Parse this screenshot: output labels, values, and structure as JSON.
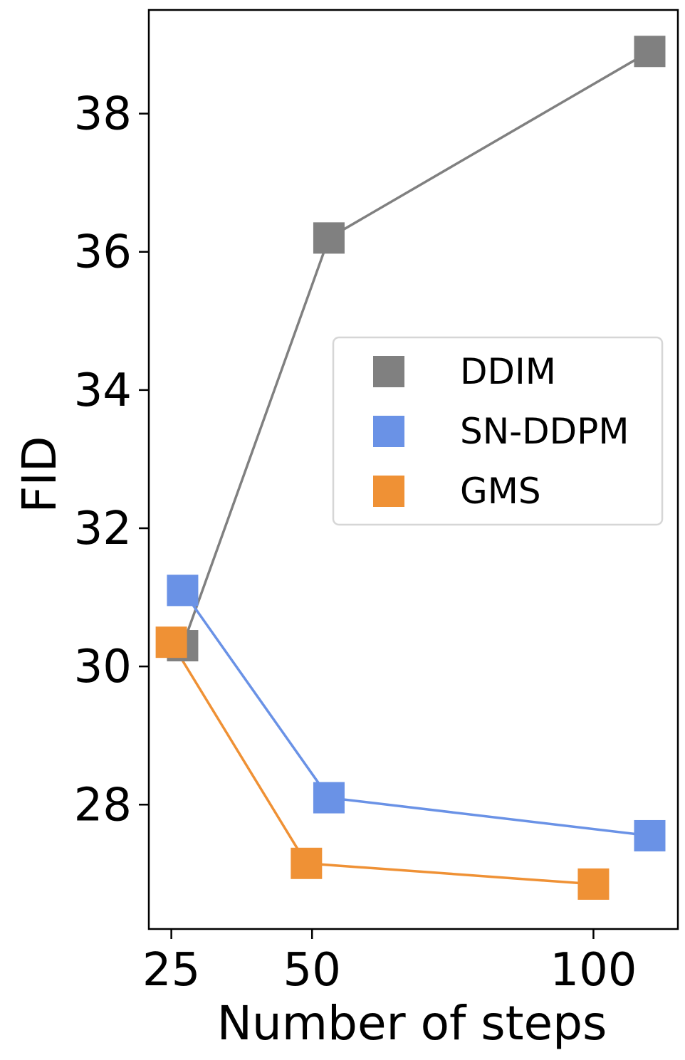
{
  "chart_data": {
    "type": "line",
    "xlabel": "Number of steps",
    "ylabel": "FID",
    "x_ticks": [
      25,
      50,
      100
    ],
    "y_ticks": [
      28,
      30,
      32,
      34,
      36,
      38
    ],
    "xlim": [
      21,
      115
    ],
    "ylim": [
      26.2,
      39.5
    ],
    "grid": false,
    "legend_position": "center-right",
    "series": [
      {
        "name": "DDIM",
        "color": "#808080",
        "points": [
          [
            27,
            30.3
          ],
          [
            53,
            36.2
          ],
          [
            110,
            38.9
          ]
        ]
      },
      {
        "name": "SN-DDPM",
        "color": "#6a92e6",
        "points": [
          [
            27,
            31.1
          ],
          [
            53,
            28.1
          ],
          [
            110,
            27.55
          ]
        ]
      },
      {
        "name": "GMS",
        "color": "#ef9135",
        "points": [
          [
            25,
            30.35
          ],
          [
            49,
            27.15
          ],
          [
            100,
            26.85
          ]
        ]
      }
    ]
  }
}
